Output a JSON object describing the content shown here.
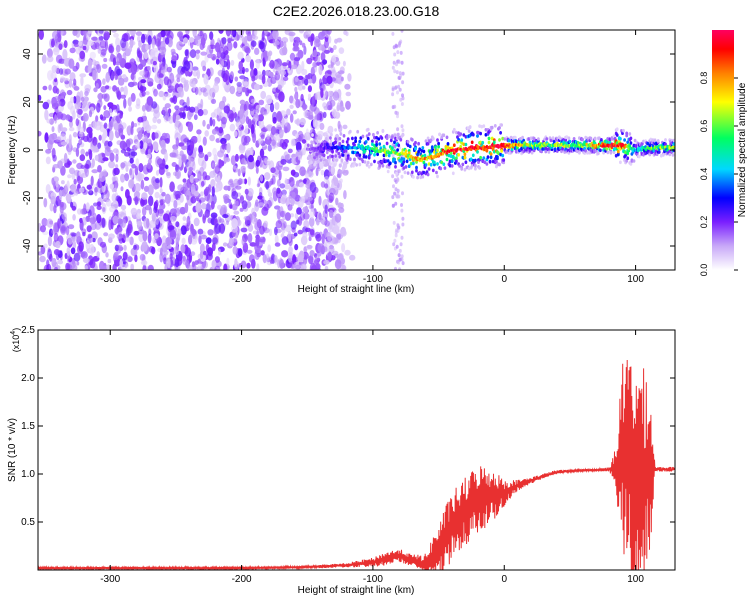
{
  "title": "C2E2.2026.018.23.00.G18",
  "chart_data": [
    {
      "type": "heatmap",
      "xlabel": "Height of straight line (km)",
      "ylabel": "Frequency (Hz)",
      "xlim": [
        -355,
        130
      ],
      "ylim": [
        -50,
        50
      ],
      "xticks": [
        "-300",
        "-200",
        "-100",
        "0",
        "100"
      ],
      "xtick_values": [
        -300,
        -200,
        -100,
        0,
        100
      ],
      "yticks": [
        "-40",
        "-20",
        "0",
        "20",
        "40"
      ],
      "ytick_values": [
        -40,
        -20,
        0,
        20,
        40
      ],
      "colorbar": {
        "label": "Normalized spectral amplitude",
        "range": [
          0,
          1
        ],
        "ticks": [
          "0.0",
          "0.2",
          "0.4",
          "0.6",
          "0.8"
        ],
        "tick_values": [
          0.0,
          0.2,
          0.4,
          0.6,
          0.8
        ],
        "colormap": [
          "#ffffff",
          "#c8a8f8",
          "#7a1fff",
          "#0000ff",
          "#00d8ff",
          "#00ff60",
          "#ffff00",
          "#ff8000",
          "#ff0000",
          "#ff0060"
        ]
      },
      "noise_region_x": [
        -355,
        -130
      ],
      "noise_amplitude": 0.2,
      "ridge": {
        "x": [
          -150,
          -130,
          -110,
          -95,
          -85,
          -75,
          -65,
          -55,
          -45,
          -35,
          -25,
          -15,
          -5,
          0,
          20,
          40,
          60,
          80,
          90,
          100,
          110,
          120,
          130
        ],
        "frequency": [
          0,
          1,
          1,
          0,
          -1,
          -2,
          -4,
          -3,
          -1,
          0,
          1,
          1,
          2,
          2,
          2,
          2,
          2,
          2,
          2,
          0,
          1,
          1,
          1
        ],
        "amplitude": [
          0.15,
          0.3,
          0.45,
          0.55,
          0.6,
          0.65,
          0.75,
          0.7,
          0.85,
          0.9,
          0.9,
          0.85,
          0.95,
          0.9,
          0.6,
          0.6,
          0.6,
          0.9,
          0.9,
          0.4,
          0.6,
          0.6,
          0.6
        ]
      }
    },
    {
      "type": "line",
      "xlabel": "Height of straight line (km)",
      "ylabel": "SNR (10 * v/v)",
      "yscale_note": "(x10",
      "yscale_exp": "4",
      "xlim": [
        -355,
        130
      ],
      "ylim": [
        0,
        2.5
      ],
      "xticks": [
        "-300",
        "-200",
        "-100",
        "0",
        "100"
      ],
      "xtick_values": [
        -300,
        -200,
        -100,
        0,
        100
      ],
      "yticks": [
        "0.5",
        "1.0",
        "1.5",
        "2.0",
        "2.5"
      ],
      "ytick_values": [
        0.5,
        1.0,
        1.5,
        2.0,
        2.5
      ],
      "line_color": "#e83030",
      "series": [
        {
          "x": [
            -355,
            -300,
            -250,
            -200,
            -150,
            -120,
            -100,
            -90,
            -80,
            -70,
            -60,
            -50,
            -40,
            -30,
            -20,
            -10,
            0,
            10,
            20,
            30,
            40,
            50,
            60,
            70,
            80,
            85,
            90,
            95,
            100,
            105,
            110,
            115,
            120,
            130
          ],
          "values": [
            0.02,
            0.02,
            0.02,
            0.02,
            0.03,
            0.05,
            0.08,
            0.12,
            0.15,
            0.1,
            0.05,
            0.2,
            0.45,
            0.6,
            0.75,
            0.78,
            0.8,
            0.88,
            0.93,
            0.98,
            1.02,
            1.03,
            1.04,
            1.04,
            1.05,
            1.05,
            1.2,
            1.1,
            1.0,
            0.9,
            1.05,
            1.05,
            1.05,
            1.05
          ],
          "noise_envelope": [
            0.01,
            0.01,
            0.01,
            0.01,
            0.01,
            0.02,
            0.04,
            0.06,
            0.06,
            0.05,
            0.1,
            0.25,
            0.3,
            0.3,
            0.3,
            0.25,
            0.12,
            0.05,
            0.03,
            0.02,
            0.02,
            0.01,
            0.01,
            0.01,
            0.02,
            0.2,
            0.8,
            1.0,
            1.1,
            1.0,
            0.9,
            0.02,
            0.02,
            0.02
          ]
        }
      ]
    }
  ]
}
